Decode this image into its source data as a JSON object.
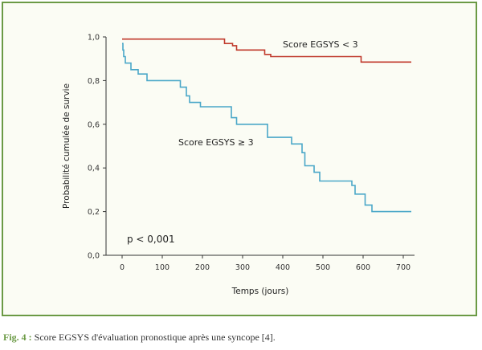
{
  "caption": {
    "label": "Fig. 4 :",
    "text": " Score EGSYS d'évaluation pronostique après une syncope [4]."
  },
  "chart_data": {
    "type": "line",
    "subtype": "kaplan-meier-step",
    "xlabel": "Temps (jours)",
    "ylabel": "Probabilité cumulée de survie",
    "xlim": [
      0,
      720
    ],
    "ylim": [
      0.0,
      1.0
    ],
    "xticks": [
      0,
      100,
      200,
      300,
      400,
      500,
      600,
      700
    ],
    "xtick_labels": [
      "0",
      "100",
      "200",
      "300",
      "400",
      "500",
      "600",
      "700"
    ],
    "yticks": [
      0.0,
      0.2,
      0.4,
      0.6,
      0.8,
      1.0
    ],
    "ytick_labels": [
      "0,0",
      "0,2",
      "0,4",
      "0,6",
      "0,8",
      "1,0"
    ],
    "grid": false,
    "annotations": [
      {
        "text": "p < 0,001"
      }
    ],
    "series": [
      {
        "name": "Score EGSYS < 3",
        "color": "#c0392b",
        "steps": [
          [
            0,
            0.99
          ],
          [
            245,
            0.99
          ],
          [
            255,
            0.97
          ],
          [
            275,
            0.96
          ],
          [
            285,
            0.94
          ],
          [
            345,
            0.94
          ],
          [
            355,
            0.92
          ],
          [
            370,
            0.91
          ],
          [
            590,
            0.91
          ],
          [
            595,
            0.885
          ],
          [
            720,
            0.885
          ]
        ]
      },
      {
        "name": "Score EGSYS ≥ 3",
        "color": "#4aa7c8",
        "steps": [
          [
            0,
            0.97
          ],
          [
            2,
            0.94
          ],
          [
            4,
            0.91
          ],
          [
            8,
            0.88
          ],
          [
            22,
            0.85
          ],
          [
            40,
            0.83
          ],
          [
            62,
            0.8
          ],
          [
            135,
            0.8
          ],
          [
            145,
            0.77
          ],
          [
            160,
            0.73
          ],
          [
            168,
            0.7
          ],
          [
            195,
            0.68
          ],
          [
            268,
            0.68
          ],
          [
            272,
            0.63
          ],
          [
            285,
            0.6
          ],
          [
            355,
            0.6
          ],
          [
            362,
            0.54
          ],
          [
            410,
            0.54
          ],
          [
            422,
            0.51
          ],
          [
            448,
            0.47
          ],
          [
            455,
            0.41
          ],
          [
            478,
            0.38
          ],
          [
            492,
            0.34
          ],
          [
            565,
            0.34
          ],
          [
            572,
            0.32
          ],
          [
            580,
            0.28
          ],
          [
            595,
            0.28
          ],
          [
            605,
            0.23
          ],
          [
            622,
            0.2
          ],
          [
            720,
            0.2
          ]
        ]
      }
    ]
  }
}
